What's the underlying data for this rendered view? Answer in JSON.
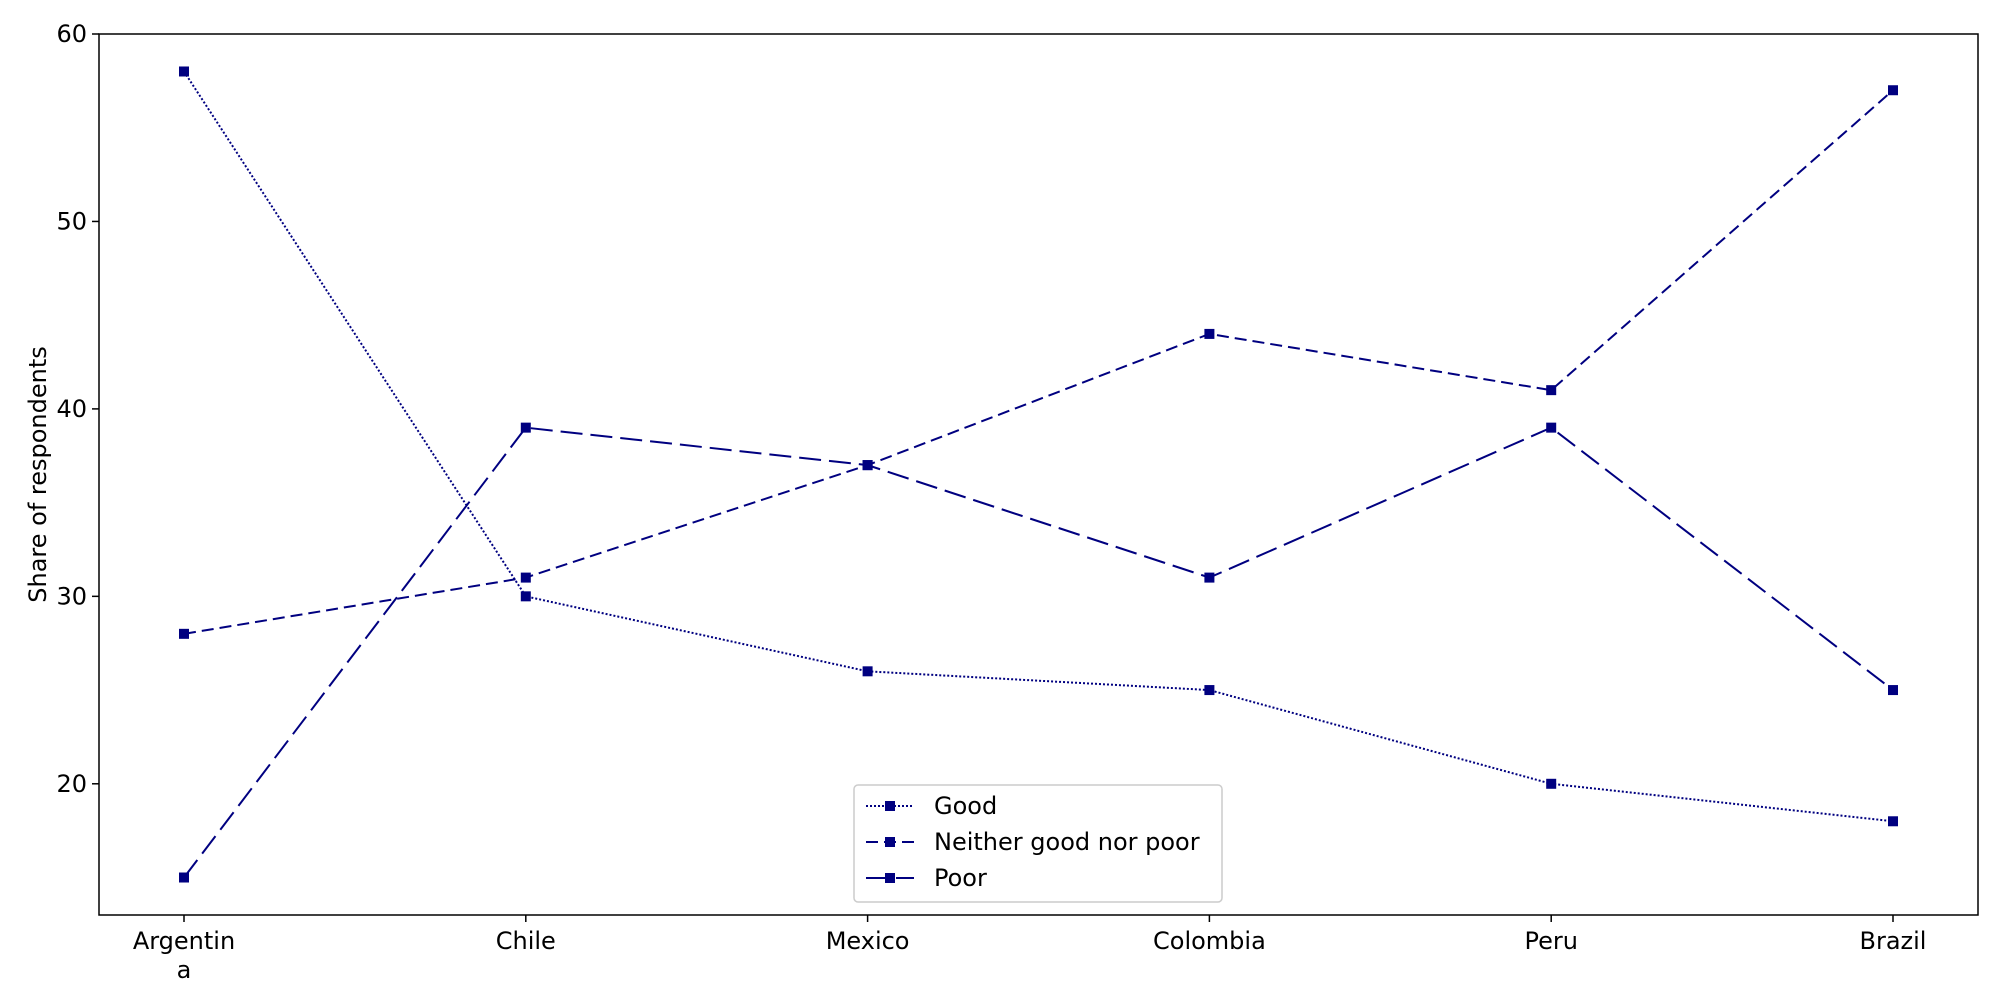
{
  "chart_data": {
    "type": "line",
    "title": "",
    "xlabel": "",
    "ylabel": "Share of respondents",
    "categories": [
      "Argentin\na",
      "Chile",
      "Mexico",
      "Colombia",
      "Peru",
      "Brazil"
    ],
    "ylim": [
      13,
      60
    ],
    "yticks": [
      20,
      30,
      40,
      50,
      60
    ],
    "grid": false,
    "legend_position": "bottom-center",
    "series": [
      {
        "name": "Good",
        "values": [
          58,
          30,
          26,
          25,
          20,
          18
        ],
        "color": "#000080",
        "style": "dotted",
        "marker": "square"
      },
      {
        "name": "Neither good nor poor",
        "values": [
          28,
          31,
          37,
          44,
          41,
          57
        ],
        "color": "#000080",
        "style": "dashed",
        "marker": "square"
      },
      {
        "name": "Poor",
        "values": [
          15,
          39,
          37,
          31,
          39,
          25
        ],
        "color": "#000080",
        "style": "longdash",
        "marker": "square"
      }
    ]
  }
}
